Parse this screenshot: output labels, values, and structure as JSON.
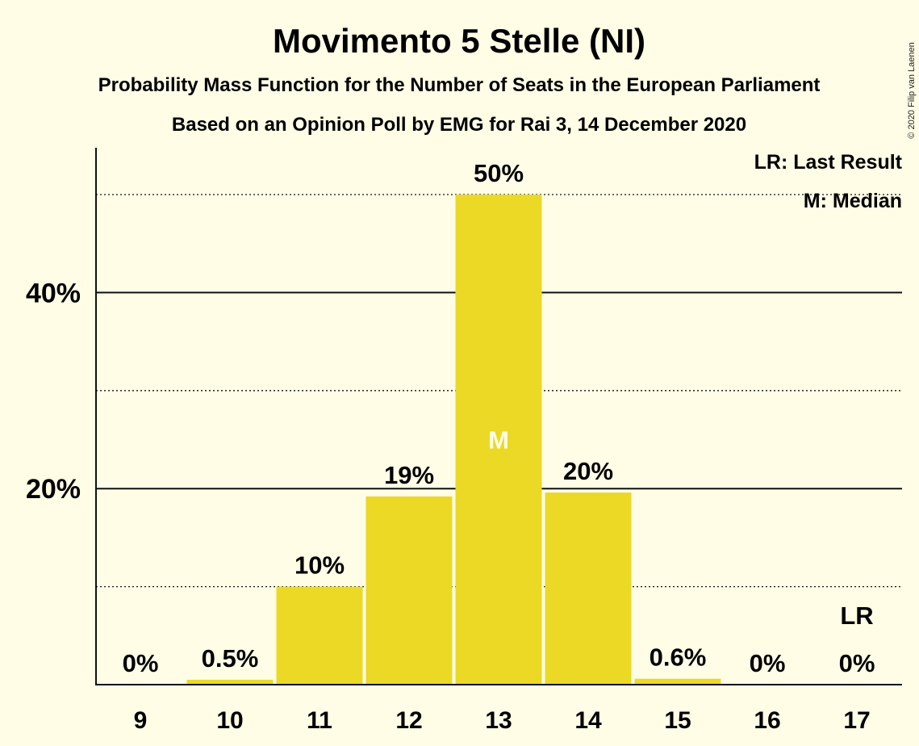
{
  "title": "Movimento 5 Stelle (NI)",
  "subtitle1": "Probability Mass Function for the Number of Seats in the European Parliament",
  "subtitle2": "Based on an Opinion Poll by EMG for Rai 3, 14 December 2020",
  "legend": {
    "lr": "LR: Last Result",
    "m": "M: Median"
  },
  "copyright": "© 2020 Filip van Laenen",
  "colors": {
    "bar": "#EBD926",
    "background": "#FFFDE6",
    "text": "#111111"
  },
  "chart_data": {
    "type": "bar",
    "categories": [
      "9",
      "10",
      "11",
      "12",
      "13",
      "14",
      "15",
      "16",
      "17"
    ],
    "values": [
      0,
      0.5,
      10,
      19.2,
      50,
      19.6,
      0.6,
      0,
      0
    ],
    "labels": [
      "0%",
      "0.5%",
      "10%",
      "19%",
      "50%",
      "20%",
      "0.6%",
      "0%",
      "0%"
    ],
    "ylim": [
      0,
      55
    ],
    "yticks": [
      {
        "value": 20,
        "label": "20%"
      },
      {
        "value": 40,
        "label": "40%"
      }
    ],
    "dotted_gridlines": [
      10,
      30,
      50
    ],
    "median_category": "13",
    "median_marker": "M",
    "last_result_category": "17",
    "last_result_marker": "LR",
    "grid": true,
    "legend_position": "top-right"
  }
}
